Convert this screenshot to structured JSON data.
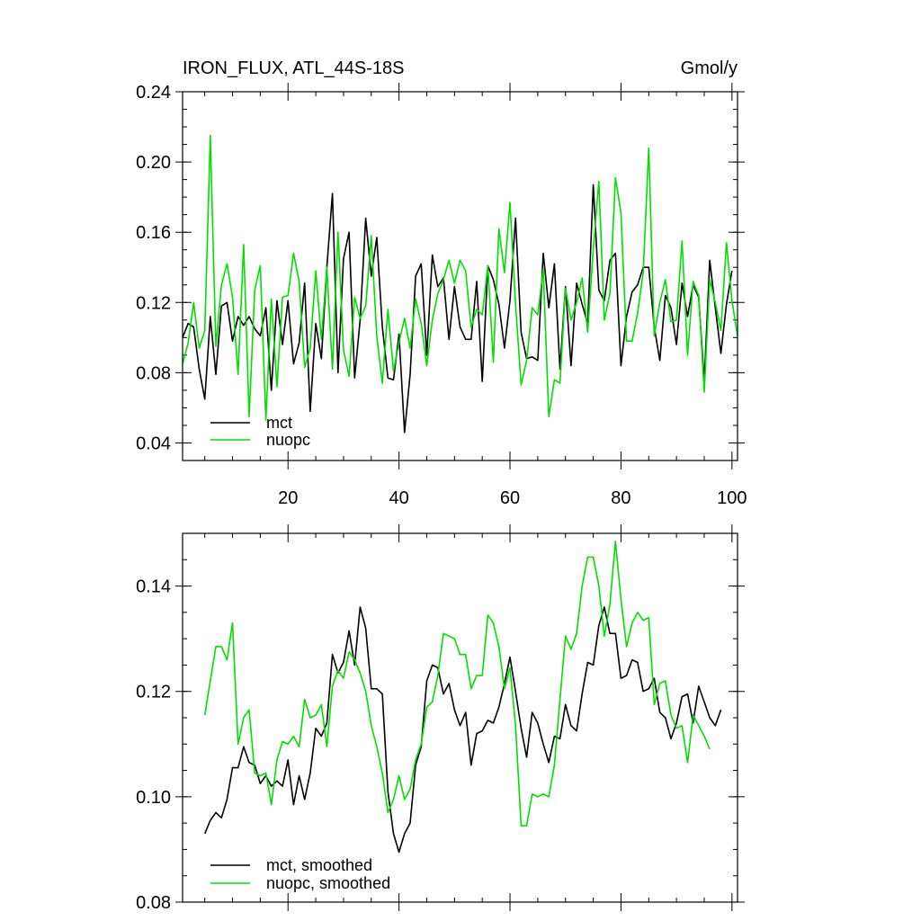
{
  "figure": {
    "title": "IRON_FLUX, ATL_44S-18S",
    "units": "Gmol/y"
  },
  "colors": {
    "mct": "#000000",
    "nuopc": "#00e000"
  },
  "chart_data": [
    {
      "type": "line",
      "title": "IRON_FLUX, ATL_44S-18S",
      "units": "Gmol/y",
      "xlim": [
        1,
        101
      ],
      "ylim": [
        0.03,
        0.24
      ],
      "xticks": [
        20,
        40,
        60,
        80,
        100
      ],
      "xticklabels": [
        "20",
        "40",
        "60",
        "80",
        "100"
      ],
      "yticks": [
        0.04,
        0.08,
        0.12,
        0.16,
        0.2,
        0.24
      ],
      "yticklabels": [
        "0.04",
        "0.08",
        "0.12",
        "0.16",
        "0.20",
        "0.24"
      ],
      "legend_position": "bottom-left",
      "series": [
        {
          "name": "mct",
          "color": "#000000",
          "x_start": 1,
          "x_step": 1,
          "values": [
            0.1,
            0.108,
            0.106,
            0.082,
            0.065,
            0.112,
            0.079,
            0.118,
            0.12,
            0.098,
            0.112,
            0.107,
            0.112,
            0.105,
            0.101,
            0.117,
            0.07,
            0.121,
            0.096,
            0.121,
            0.085,
            0.097,
            0.131,
            0.058,
            0.108,
            0.088,
            0.14,
            0.182,
            0.08,
            0.145,
            0.16,
            0.077,
            0.11,
            0.168,
            0.135,
            0.157,
            0.106,
            0.077,
            0.076,
            0.102,
            0.046,
            0.079,
            0.135,
            0.142,
            0.09,
            0.147,
            0.129,
            0.134,
            0.099,
            0.129,
            0.106,
            0.099,
            0.099,
            0.132,
            0.075,
            0.141,
            0.133,
            0.119,
            0.094,
            0.121,
            0.168,
            0.103,
            0.088,
            0.089,
            0.087,
            0.148,
            0.117,
            0.142,
            0.082,
            0.129,
            0.084,
            0.131,
            0.119,
            0.108,
            0.187,
            0.127,
            0.121,
            0.144,
            0.148,
            0.084,
            0.112,
            0.126,
            0.13,
            0.14,
            0.14,
            0.106,
            0.087,
            0.124,
            0.117,
            0.096,
            0.131,
            0.112,
            0.13,
            0.123,
            0.075,
            0.144,
            0.117,
            0.091,
            0.119,
            0.138
          ]
        },
        {
          "name": "nuopc",
          "color": "#00e000",
          "x_start": 1,
          "x_step": 1,
          "values": [
            0.085,
            0.097,
            0.12,
            0.094,
            0.104,
            0.215,
            0.095,
            0.13,
            0.142,
            0.123,
            0.079,
            0.153,
            0.055,
            0.127,
            0.141,
            0.053,
            0.122,
            0.072,
            0.123,
            0.124,
            0.148,
            0.132,
            0.083,
            0.094,
            0.138,
            0.099,
            0.14,
            0.082,
            0.16,
            0.093,
            0.078,
            0.123,
            0.111,
            0.118,
            0.158,
            0.101,
            0.074,
            0.116,
            0.081,
            0.097,
            0.111,
            0.094,
            0.122,
            0.108,
            0.084,
            0.11,
            0.125,
            0.133,
            0.144,
            0.131,
            0.144,
            0.138,
            0.106,
            0.116,
            0.113,
            0.141,
            0.086,
            0.162,
            0.137,
            0.177,
            0.119,
            0.073,
            0.087,
            0.117,
            0.113,
            0.139,
            0.055,
            0.076,
            0.074,
            0.128,
            0.11,
            0.12,
            0.134,
            0.103,
            0.15,
            0.189,
            0.11,
            0.125,
            0.191,
            0.171,
            0.098,
            0.098,
            0.114,
            0.137,
            0.208,
            0.101,
            0.12,
            0.133,
            0.109,
            0.11,
            0.155,
            0.09,
            0.132,
            0.124,
            0.069,
            0.133,
            0.12,
            0.104,
            0.154,
            0.121,
            0.101
          ]
        }
      ]
    },
    {
      "type": "line",
      "title": "",
      "xlim": [
        1,
        101
      ],
      "ylim": [
        0.08,
        0.15
      ],
      "xticks": [
        20,
        40,
        60,
        80,
        100
      ],
      "xticklabels": [],
      "yticks": [
        0.08,
        0.1,
        0.12,
        0.14
      ],
      "yticklabels": [
        "0.08",
        "0.10",
        "0.12",
        "0.14"
      ],
      "legend_position": "bottom-left",
      "series": [
        {
          "name": "mct, smoothed",
          "color": "#000000",
          "x_start": 5,
          "x_step": 1,
          "values": [
            0.093,
            0.0955,
            0.097,
            0.096,
            0.0995,
            0.1055,
            0.1055,
            0.1095,
            0.1065,
            0.106,
            0.1025,
            0.104,
            0.102,
            0.103,
            0.102,
            0.107,
            0.0985,
            0.104,
            0.0995,
            0.1045,
            0.113,
            0.1115,
            0.114,
            0.127,
            0.1235,
            0.1255,
            0.1315,
            0.125,
            0.136,
            0.132,
            0.1205,
            0.1205,
            0.1195,
            0.101,
            0.093,
            0.0895,
            0.093,
            0.095,
            0.106,
            0.1095,
            0.122,
            0.125,
            0.1245,
            0.1195,
            0.1215,
            0.1165,
            0.1135,
            0.116,
            0.106,
            0.112,
            0.1125,
            0.1145,
            0.114,
            0.117,
            0.1215,
            0.1265,
            0.12,
            0.113,
            0.1075,
            0.116,
            0.114,
            0.11,
            0.1065,
            0.1115,
            0.111,
            0.1175,
            0.1135,
            0.1125,
            0.1195,
            0.1255,
            0.125,
            0.1325,
            0.136,
            0.131,
            0.131,
            0.1225,
            0.123,
            0.126,
            0.1255,
            0.12,
            0.1205,
            0.1225,
            0.116,
            0.115,
            0.111,
            0.114,
            0.119,
            0.1195,
            0.114,
            0.121,
            0.118,
            0.115,
            0.1135,
            0.1165
          ]
        },
        {
          "name": "nuopc, smoothed",
          "color": "#00e000",
          "x_start": 5,
          "x_step": 1,
          "values": [
            0.1155,
            0.122,
            0.1285,
            0.1285,
            0.126,
            0.133,
            0.11,
            0.115,
            0.1165,
            0.1045,
            0.104,
            0.1045,
            0.0985,
            0.107,
            0.1105,
            0.11,
            0.1115,
            0.1095,
            0.1185,
            0.115,
            0.1155,
            0.1175,
            0.1095,
            0.121,
            0.124,
            0.1225,
            0.1275,
            0.126,
            0.1235,
            0.12,
            0.1135,
            0.1095,
            0.1045,
            0.097,
            0.0995,
            0.104,
            0.0995,
            0.1015,
            0.107,
            0.11,
            0.117,
            0.118,
            0.123,
            0.131,
            0.1305,
            0.13,
            0.127,
            0.127,
            0.1205,
            0.123,
            0.123,
            0.1345,
            0.133,
            0.1285,
            0.1205,
            0.1245,
            0.1135,
            0.0945,
            0.0945,
            0.1005,
            0.1,
            0.1005,
            0.1,
            0.106,
            0.1185,
            0.1305,
            0.128,
            0.131,
            0.14,
            0.1455,
            0.1455,
            0.14,
            0.1305,
            0.1365,
            0.1485,
            0.1375,
            0.1285,
            0.133,
            0.135,
            0.1335,
            0.134,
            0.1175,
            0.1215,
            0.122,
            0.1155,
            0.113,
            0.1135,
            0.1065,
            0.1155,
            0.1135,
            0.1115,
            0.109
          ]
        }
      ]
    }
  ]
}
